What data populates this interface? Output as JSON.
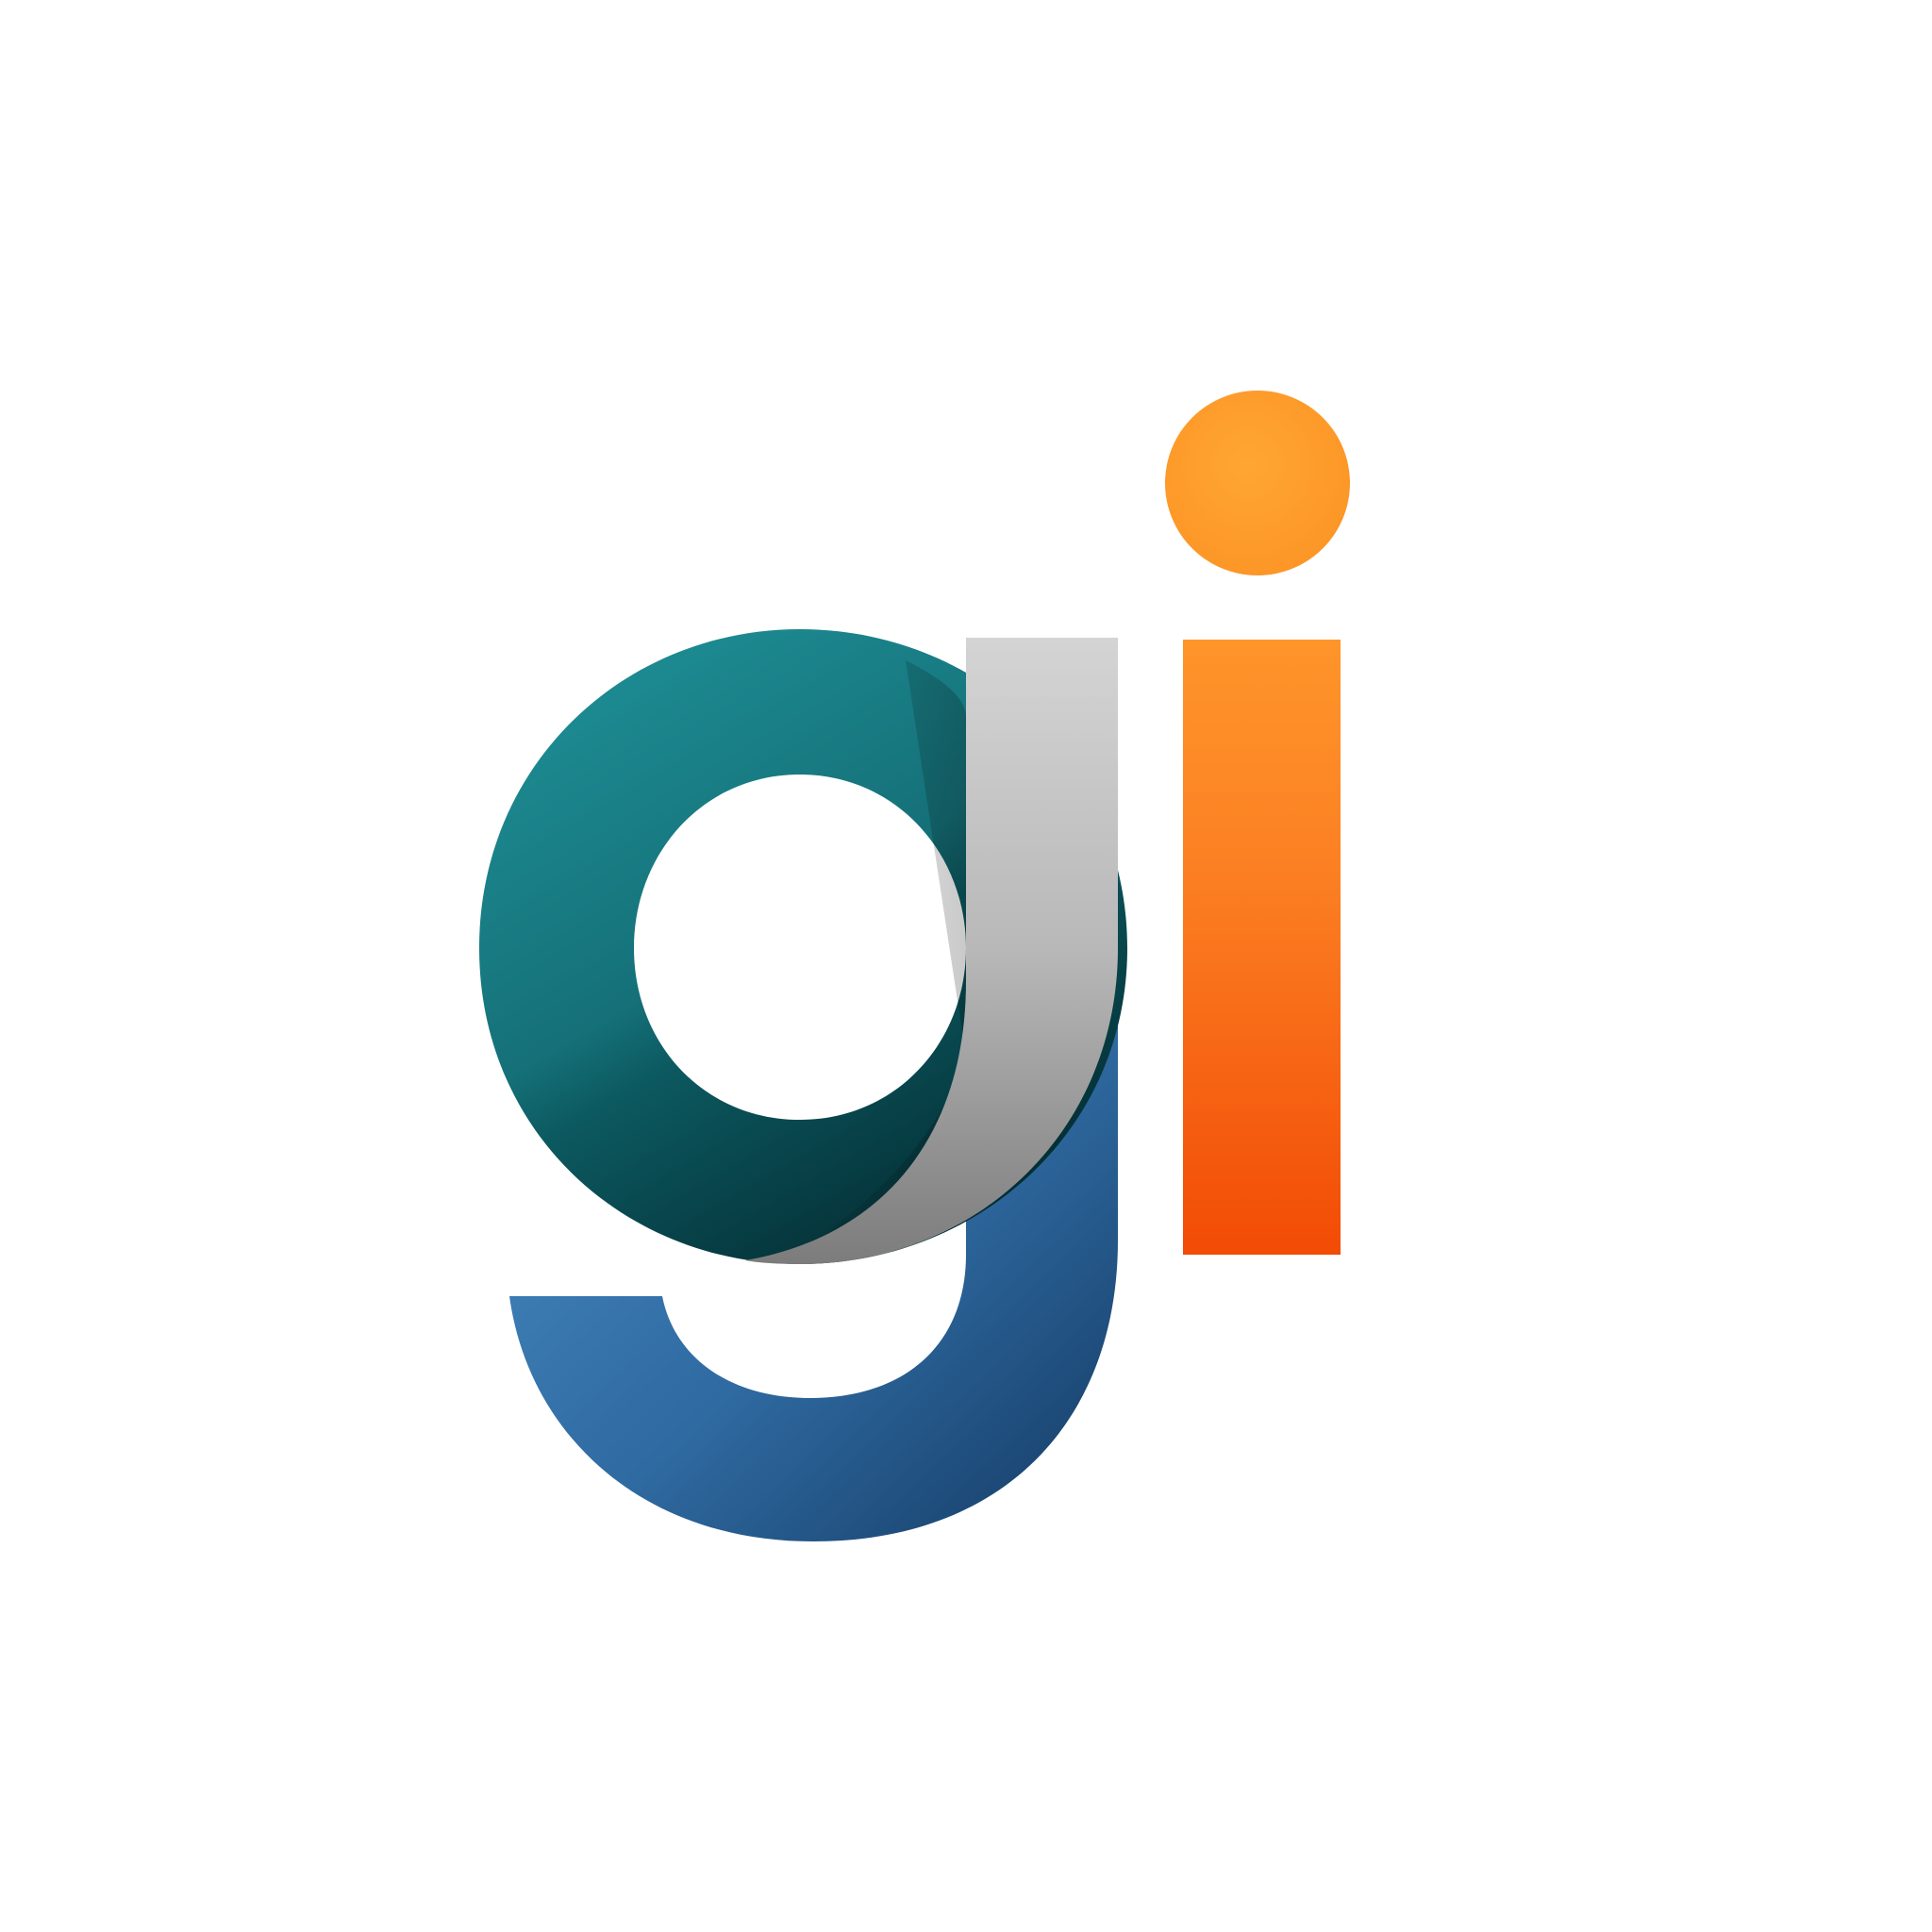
{
  "logo": {
    "lettering": "gi",
    "colors": {
      "g_bowl_top": "#1C8A91",
      "g_bowl_bottom": "#02252B",
      "g_stem_top": "#D2D2D2",
      "g_stem_bottom": "#7F7F7F",
      "g_tail_left": "#4A8DC6",
      "g_tail_right": "#143A63",
      "i_dot": "#FF9F2C",
      "i_stem_top": "#FF952A",
      "i_stem_bottom": "#F24B05",
      "background": "#FFFFFF"
    }
  }
}
